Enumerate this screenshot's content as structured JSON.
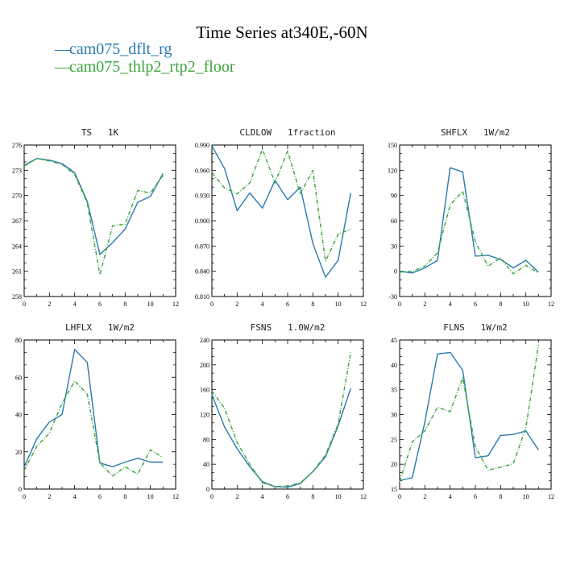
{
  "title": "Time Series at340E,-60N",
  "legend": [
    {
      "label": "cam075_dflt_rg",
      "color": "#2a7ab0",
      "dash": "solid"
    },
    {
      "label": "cam075_thlp2_rtp2_floor",
      "color": "#3aa53a",
      "dash": "dashed"
    }
  ],
  "chart_data": [
    {
      "type": "line",
      "title": "TS   1K",
      "x": [
        0,
        1,
        2,
        3,
        4,
        5,
        6,
        7,
        8,
        9,
        10,
        11
      ],
      "xlim": [
        0,
        12
      ],
      "xticks": [
        0,
        2,
        4,
        6,
        8,
        10,
        12
      ],
      "ylim": [
        258,
        276
      ],
      "yticks": [
        258,
        261,
        264,
        267,
        270,
        273,
        276
      ],
      "series": [
        {
          "name": "cam075_dflt_rg",
          "values": [
            273.6,
            274.4,
            274.2,
            273.8,
            272.7,
            269.3,
            263.0,
            264.4,
            266.0,
            269.2,
            269.9,
            272.6
          ]
        },
        {
          "name": "cam075_thlp2_rtp2_floor",
          "values": [
            273.5,
            274.4,
            274.1,
            273.7,
            272.5,
            269.1,
            260.6,
            266.4,
            266.6,
            270.6,
            270.3,
            272.4
          ]
        }
      ]
    },
    {
      "type": "line",
      "title": "CLDLOW   1fraction",
      "x": [
        0,
        1,
        2,
        3,
        4,
        5,
        6,
        7,
        8,
        9,
        10,
        11
      ],
      "xlim": [
        0,
        12
      ],
      "xticks": [
        0,
        2,
        4,
        6,
        8,
        10,
        12
      ],
      "ylim": [
        0.81,
        0.99
      ],
      "yticks": [
        "0.810",
        "0.840",
        "0.870",
        "0.900",
        "0.930",
        "0.960",
        "0.990"
      ],
      "series": [
        {
          "name": "cam075_dflt_rg",
          "values": [
            0.989,
            0.962,
            0.912,
            0.933,
            0.915,
            0.948,
            0.925,
            0.94,
            0.873,
            0.833,
            0.853,
            0.933
          ]
        },
        {
          "name": "cam075_thlp2_rtp2_floor",
          "values": [
            0.957,
            0.939,
            0.932,
            0.945,
            0.985,
            0.945,
            0.983,
            0.932,
            0.96,
            0.852,
            0.884,
            0.89
          ]
        }
      ]
    },
    {
      "type": "line",
      "title": "SHFLX   1W/m2",
      "x": [
        0,
        1,
        2,
        3,
        4,
        5,
        6,
        7,
        8,
        9,
        10,
        11
      ],
      "xlim": [
        0,
        12
      ],
      "xticks": [
        0,
        2,
        4,
        6,
        8,
        10,
        12
      ],
      "ylim": [
        -30,
        150
      ],
      "yticks": [
        -30,
        0,
        30,
        60,
        90,
        120,
        150
      ],
      "series": [
        {
          "name": "cam075_dflt_rg",
          "values": [
            0,
            -2,
            4,
            13,
            123,
            118,
            18,
            19,
            14,
            4,
            13,
            -1
          ]
        },
        {
          "name": "cam075_thlp2_rtp2_floor",
          "values": [
            -1,
            0,
            6,
            22,
            79,
            95,
            35,
            6,
            16,
            -3,
            7,
            -2
          ]
        }
      ]
    },
    {
      "type": "line",
      "title": "LHFLX   1W/m2",
      "x": [
        0,
        1,
        2,
        3,
        4,
        5,
        6,
        7,
        8,
        9,
        10,
        11
      ],
      "xlim": [
        0,
        12
      ],
      "xticks": [
        0,
        2,
        4,
        6,
        8,
        10,
        12
      ],
      "ylim": [
        0,
        80
      ],
      "yticks": [
        0,
        20,
        40,
        60,
        80
      ],
      "series": [
        {
          "name": "cam075_dflt_rg",
          "values": [
            12,
            27,
            36,
            40,
            75,
            68,
            14,
            12,
            14.5,
            16.5,
            14.5,
            14.5
          ]
        },
        {
          "name": "cam075_thlp2_rtp2_floor",
          "values": [
            10,
            23,
            30,
            46,
            58,
            51,
            14,
            7,
            12,
            8,
            21,
            17
          ]
        }
      ]
    },
    {
      "type": "line",
      "title": "FSNS   1.0W/m2",
      "x": [
        0,
        1,
        2,
        3,
        4,
        5,
        6,
        7,
        8,
        9,
        10,
        11
      ],
      "xlim": [
        0,
        12
      ],
      "xticks": [
        0,
        2,
        4,
        6,
        8,
        10,
        12
      ],
      "ylim": [
        0,
        240
      ],
      "yticks": [
        0,
        40,
        80,
        120,
        160,
        200,
        240
      ],
      "series": [
        {
          "name": "cam075_dflt_rg",
          "values": [
            152,
            100,
            65,
            36,
            12,
            4,
            3,
            9,
            28,
            52,
            102,
            162
          ]
        },
        {
          "name": "cam075_thlp2_rtp2_floor",
          "values": [
            158,
            130,
            75,
            40,
            10,
            4,
            5,
            10,
            28,
            55,
            105,
            220
          ]
        }
      ]
    },
    {
      "type": "line",
      "title": "FLNS   1W/m2",
      "x": [
        0,
        1,
        2,
        3,
        4,
        5,
        6,
        7,
        8,
        9,
        10,
        11
      ],
      "xlim": [
        0,
        12
      ],
      "xticks": [
        0,
        2,
        4,
        6,
        8,
        10,
        12
      ],
      "ylim": [
        15,
        45
      ],
      "yticks": [
        15,
        20,
        25,
        30,
        35,
        40,
        45
      ],
      "series": [
        {
          "name": "cam075_dflt_rg",
          "values": [
            16.7,
            17.3,
            28.5,
            42.2,
            42.5,
            38.9,
            21.3,
            21.7,
            25.8,
            26.0,
            26.7,
            22.9
          ]
        },
        {
          "name": "cam075_thlp2_rtp2_floor",
          "values": [
            16.5,
            24.5,
            26.7,
            31.5,
            30.6,
            37.4,
            23.5,
            18.8,
            19.4,
            20.1,
            27.3,
            44.0
          ]
        }
      ]
    }
  ]
}
